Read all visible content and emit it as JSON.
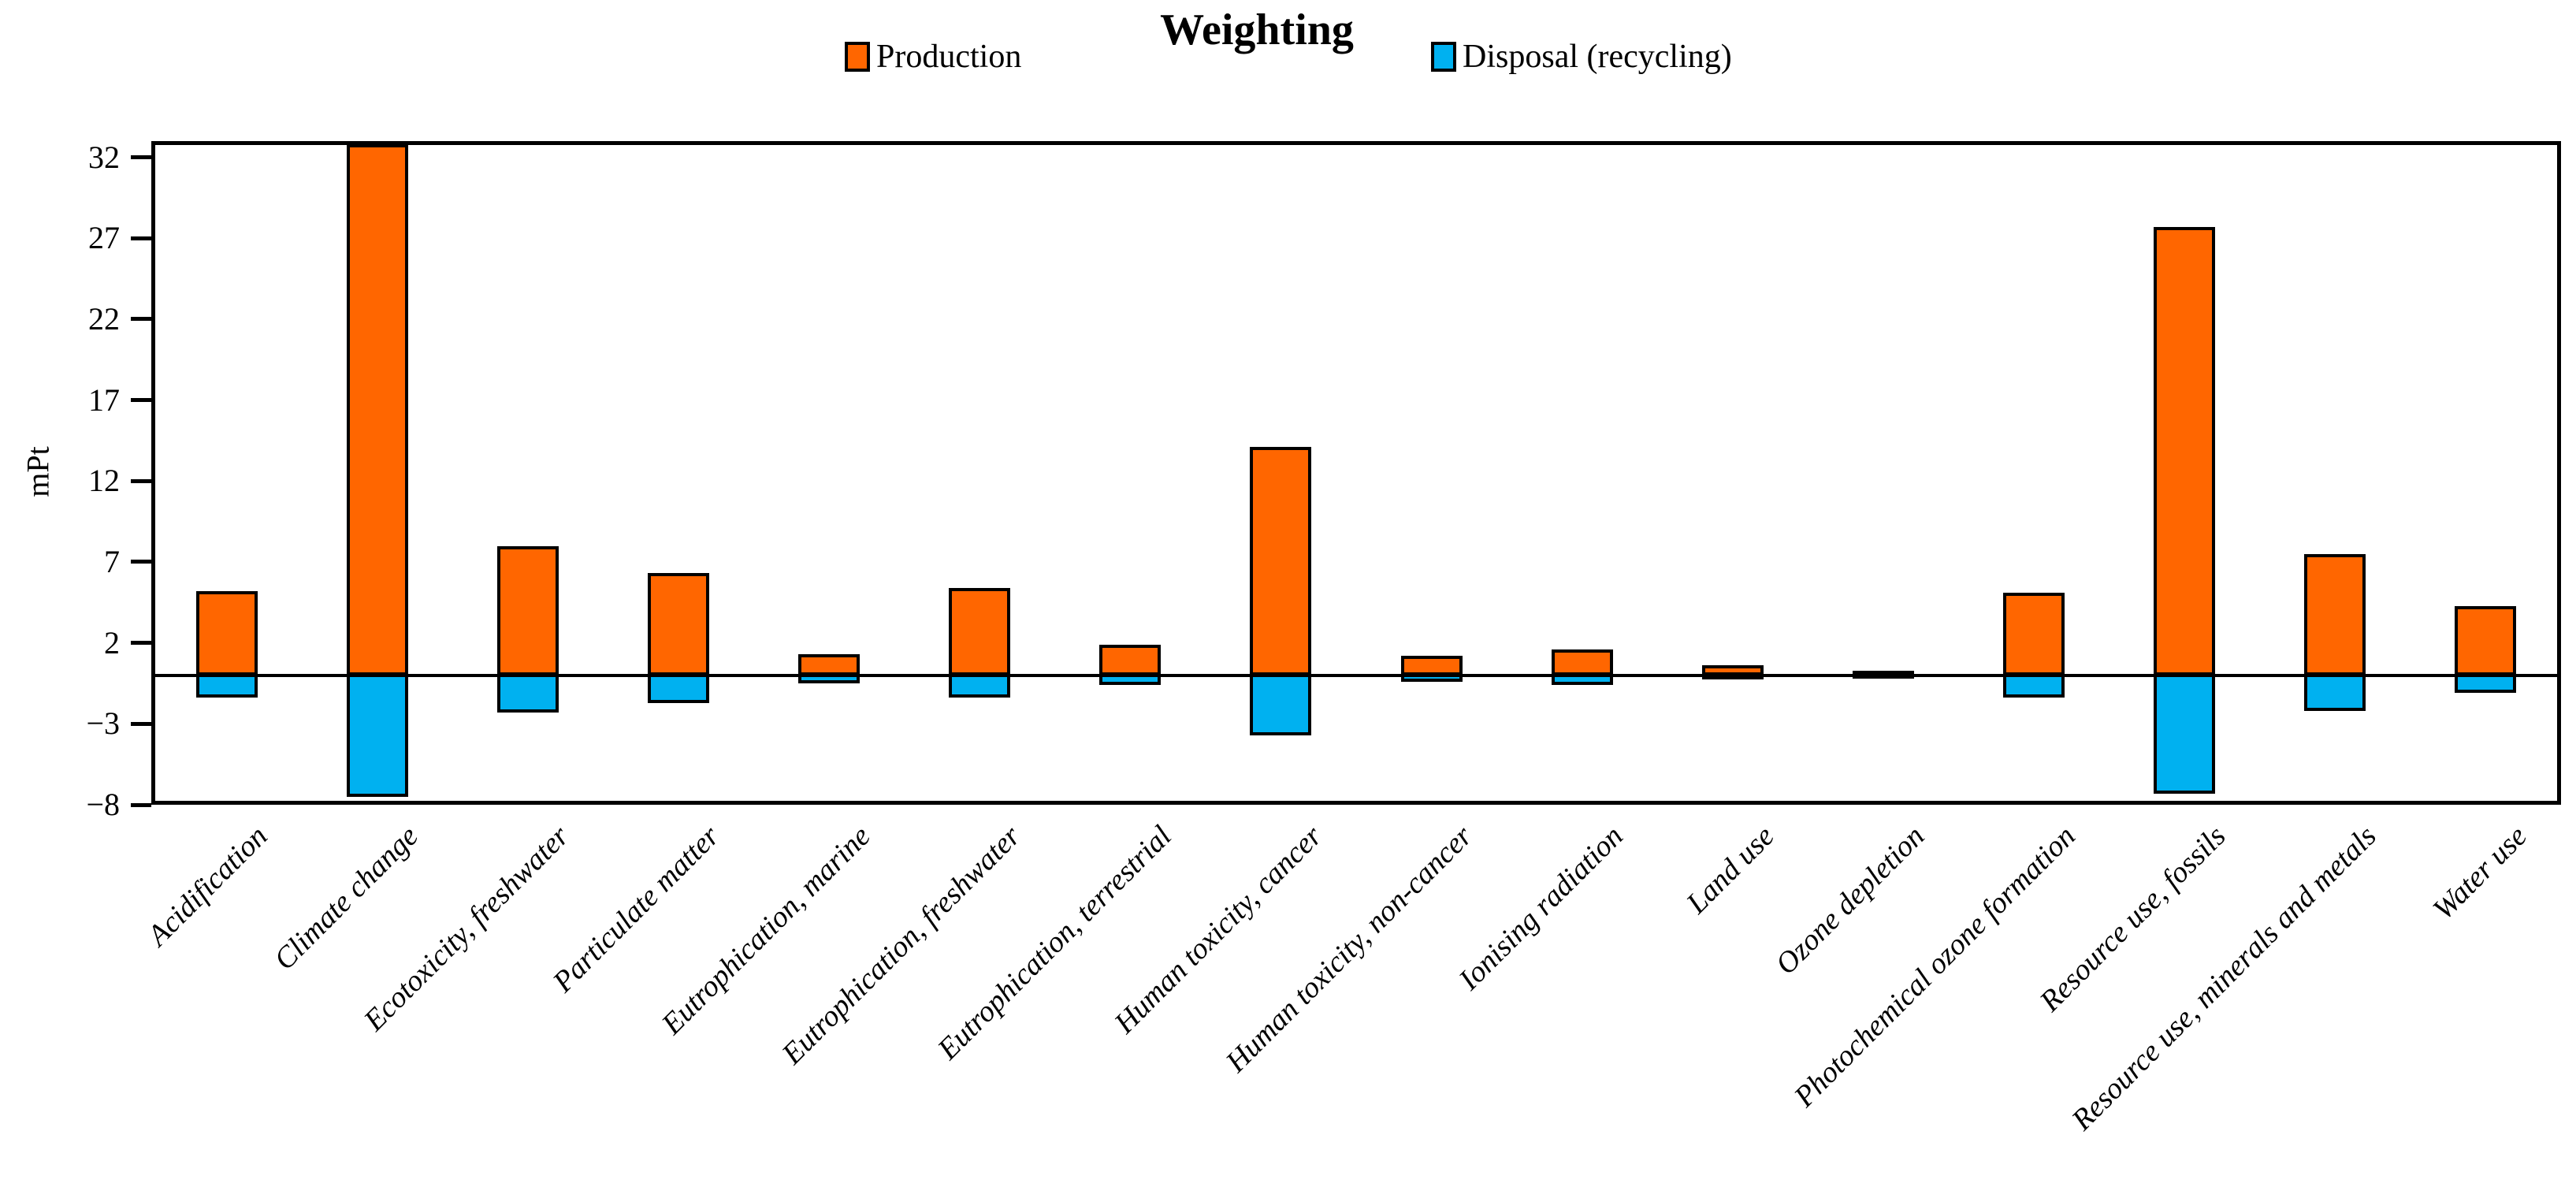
{
  "title": "Weighting",
  "legend": [
    {
      "name": "Production",
      "color": "#FF6600"
    },
    {
      "name": "Disposal (recycling)",
      "color": "#00B1F0"
    }
  ],
  "y_axis": {
    "label": "mPt",
    "ticks": [
      32,
      27,
      22,
      17,
      12,
      7,
      2,
      -3,
      -8
    ],
    "tick_labels": [
      "32",
      "27",
      "22",
      "17",
      "12",
      "7",
      "2",
      "−3",
      "−8"
    ],
    "max": 33,
    "min": -8
  },
  "chart_data": {
    "type": "bar",
    "title": "Weighting",
    "xlabel": "",
    "ylabel": "mPt",
    "ylim": [
      -8,
      33
    ],
    "grid": false,
    "legend_position": "top",
    "categories": [
      "Acidification",
      "Climate change",
      "Ecotoxicity, freshwater",
      "Particulate matter",
      "Eutrophication, marine",
      "Eutrophication, freshwater",
      "Eutrophication, terrestrial",
      "Human toxicity, cancer",
      "Human toxicity, non-cancer",
      "Ionising radiation",
      "Land use",
      "Ozone depletion",
      "Photochemical ozone formation",
      "Resource use, fossils",
      "Resource use, minerals and metals",
      "Water use"
    ],
    "series": [
      {
        "name": "Production",
        "color": "#FF6600",
        "values": [
          5.0,
          32.6,
          7.8,
          6.1,
          1.1,
          5.2,
          1.7,
          13.9,
          1.0,
          1.4,
          0.4,
          0.1,
          4.9,
          27.5,
          7.3,
          4.1
        ]
      },
      {
        "name": "Disposal (recycling)",
        "color": "#00B1F0",
        "values": [
          -1.2,
          -7.3,
          -2.1,
          -1.5,
          -0.3,
          -1.2,
          -0.4,
          -3.5,
          -0.2,
          -0.4,
          -0.05,
          -0.02,
          -1.2,
          -7.1,
          -2.0,
          -0.9
        ]
      }
    ]
  },
  "colors": {
    "bar_border": "#000000",
    "axis": "#000000",
    "background": "#ffffff"
  }
}
